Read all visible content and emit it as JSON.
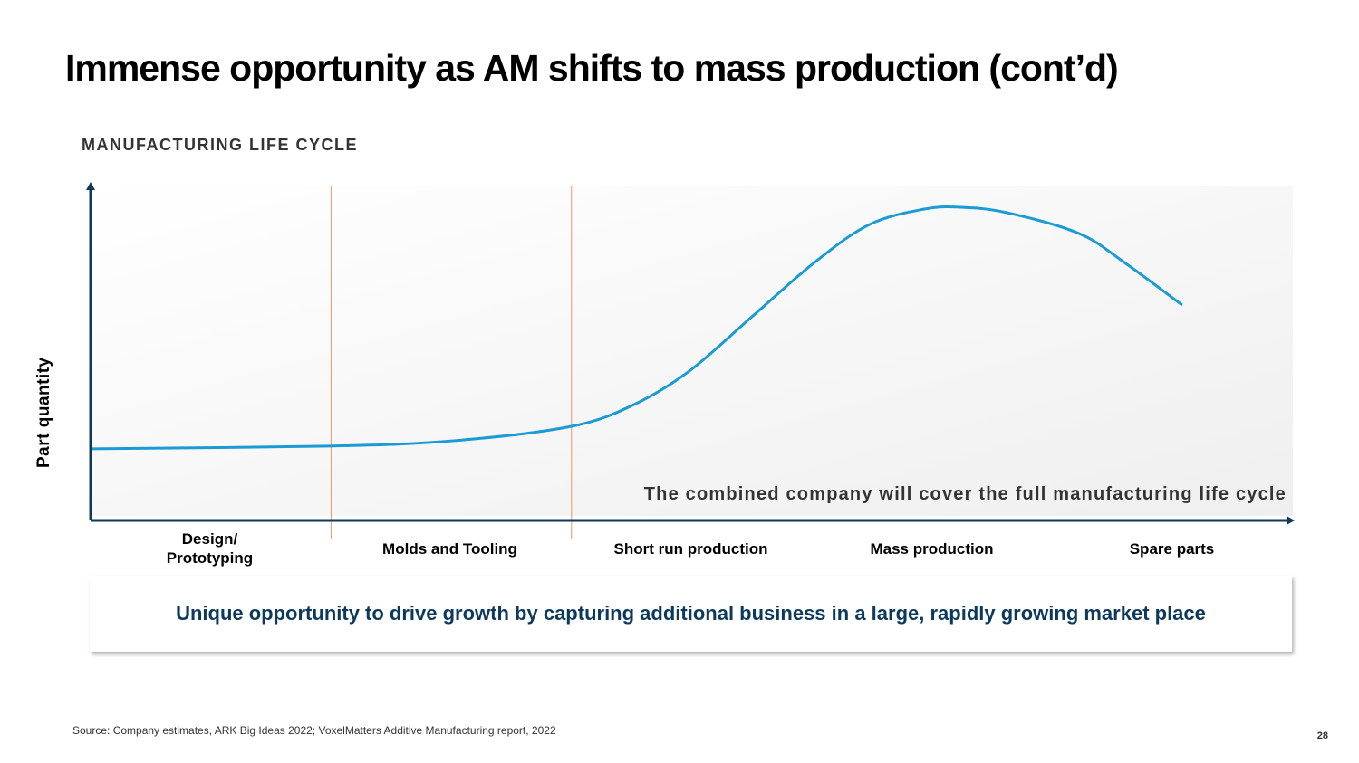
{
  "title": "Immense opportunity as AM shifts to mass production (cont’d)",
  "footer": {
    "source": "Source: Company estimates, ARK Big Ideas 2022; VoxelMatters Additive Manufacturing report, 2022",
    "page_number": "28"
  },
  "callout": "Unique opportunity to drive growth by capturing additional business in a large, rapidly growing market place",
  "colors": {
    "curve": "#1a9bd4",
    "axis": "#0d3a5c",
    "divider": "#e8976a",
    "callout_text": "#0d3a5c"
  },
  "chart_data": {
    "type": "line",
    "title": "MANUFACTURING LIFE CYCLE",
    "xlabel": "",
    "ylabel": "Part quantity",
    "categories": [
      "Design/\nPrototyping",
      "Molds and Tooling",
      "Short run production",
      "Mass production",
      "Spare parts"
    ],
    "category_labels": [
      "Design/",
      "Prototyping",
      "Molds and Tooling",
      "Short run production",
      "Mass production",
      "Spare parts"
    ],
    "annotation": "The combined company will cover the full manufacturing life cycle",
    "xlim": [
      0,
      5
    ],
    "ylim": [
      0,
      100
    ],
    "grid": false,
    "stage_dividers": [
      1,
      2
    ],
    "series": [
      {
        "name": "Part quantity",
        "x": [
          0,
          0.99,
          1.51,
          2.0,
          2.26,
          2.49,
          2.75,
          3.01,
          3.24,
          3.47,
          3.62,
          3.81,
          4.11,
          4.3,
          4.54
        ],
        "y": [
          21.4,
          22.2,
          23.8,
          28.1,
          34.6,
          44.6,
          60.8,
          77,
          88.4,
          93,
          93.5,
          91.9,
          85.7,
          77,
          64.3
        ]
      }
    ]
  }
}
